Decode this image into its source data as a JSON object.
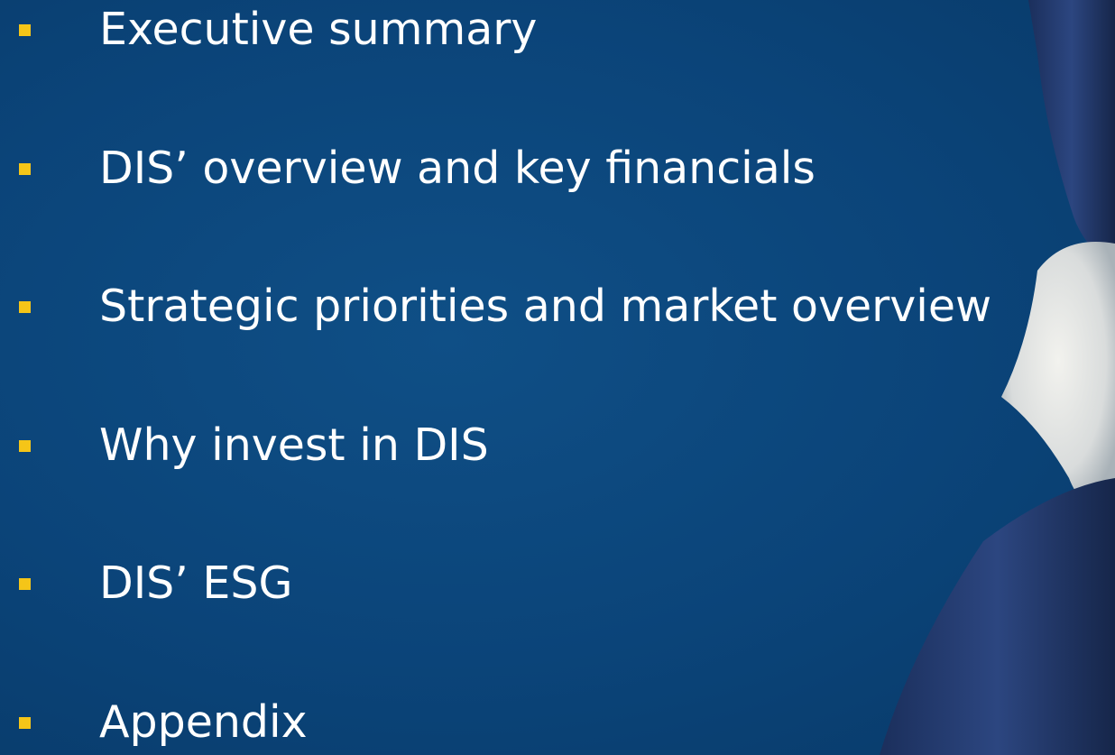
{
  "agenda": {
    "items": [
      "Executive summary",
      "DIS’ overview and key financials",
      "Strategic priorities and market overview",
      "Why invest in DIS",
      "DIS’ ESG",
      "Appendix"
    ]
  }
}
